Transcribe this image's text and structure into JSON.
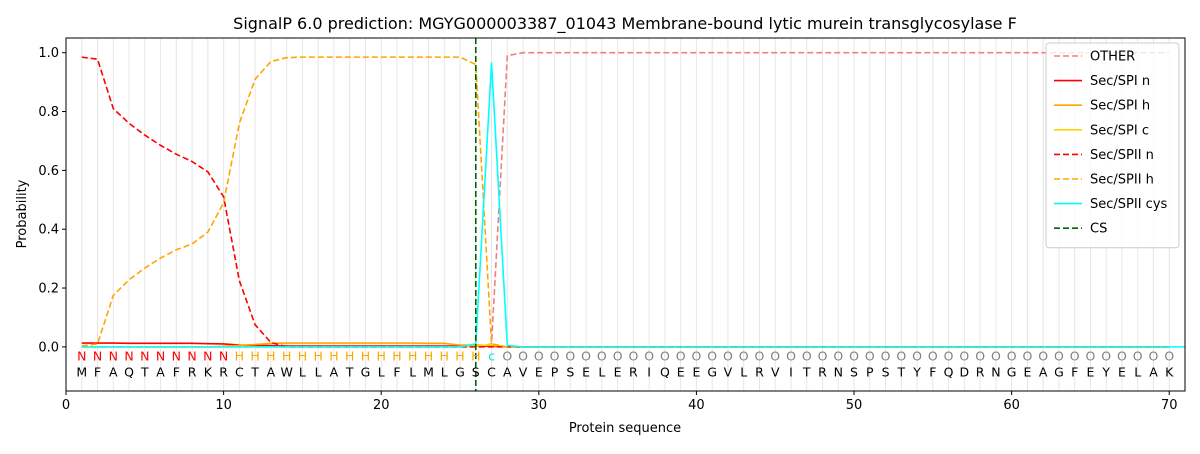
{
  "chart_data": {
    "type": "line",
    "title": "SignalP 6.0 prediction: MGYG000003387_01043 Membrane-bound lytic murein transglycosylase F",
    "xlabel": "Protein sequence",
    "ylabel": "Probability",
    "xlim": [
      0,
      71
    ],
    "ylim": [
      -0.15,
      1.05
    ],
    "xticks": [
      0,
      10,
      20,
      30,
      40,
      50,
      60,
      70
    ],
    "yticks": [
      0.0,
      0.2,
      0.4,
      0.6,
      0.8,
      1.0
    ],
    "ytick_labels": [
      "0.0",
      "0.2",
      "0.4",
      "0.6",
      "0.8",
      "1.0"
    ],
    "grid": "vertical lines at each residue",
    "legend_position": "top-right",
    "sequence": [
      "M",
      "F",
      "A",
      "Q",
      "T",
      "A",
      "F",
      "R",
      "K",
      "R",
      "C",
      "T",
      "A",
      "W",
      "L",
      "L",
      "A",
      "T",
      "G",
      "L",
      "F",
      "L",
      "M",
      "L",
      "G",
      "S",
      "C",
      "A",
      "V",
      "E",
      "P",
      "S",
      "E",
      "L",
      "E",
      "R",
      "I",
      "Q",
      "E",
      "E",
      "G",
      "V",
      "L",
      "R",
      "V",
      "I",
      "T",
      "R",
      "N",
      "S",
      "P",
      "S",
      "T",
      "Y",
      "F",
      "Q",
      "D",
      "R",
      "N",
      "G",
      "E",
      "A",
      "G",
      "F",
      "E",
      "Y",
      "E",
      "L",
      "A",
      "K"
    ],
    "region_labels": [
      "N",
      "N",
      "N",
      "N",
      "N",
      "N",
      "N",
      "N",
      "N",
      "N",
      "H",
      "H",
      "H",
      "H",
      "H",
      "H",
      "H",
      "H",
      "H",
      "H",
      "H",
      "H",
      "H",
      "H",
      "H",
      "H",
      "c",
      "O",
      "O",
      "O",
      "O",
      "O",
      "O",
      "O",
      "O",
      "O",
      "O",
      "O",
      "O",
      "O",
      "O",
      "O",
      "O",
      "O",
      "O",
      "O",
      "O",
      "O",
      "O",
      "O",
      "O",
      "O",
      "O",
      "O",
      "O",
      "O",
      "O",
      "O",
      "O",
      "O",
      "O",
      "O",
      "O",
      "O",
      "O",
      "O",
      "O",
      "O",
      "O",
      "O"
    ],
    "region_colors": {
      "N": "#ff0000",
      "H": "#ffa500",
      "c": "#00e5e5",
      "O": "#808080"
    },
    "cs_position": 26,
    "series": [
      {
        "name": "OTHER",
        "color": "#f08080",
        "dash": "dashed",
        "values": [
          0,
          0,
          0,
          0,
          0,
          0,
          0,
          0,
          0,
          0,
          0,
          0,
          0,
          0,
          0,
          0,
          0,
          0,
          0,
          0,
          0,
          0,
          0,
          0,
          0,
          0,
          0.01,
          0.99,
          1,
          1,
          1,
          1,
          1,
          1,
          1,
          1,
          1,
          1,
          1,
          1,
          1,
          1,
          1,
          1,
          1,
          1,
          1,
          1,
          1,
          1,
          1,
          1,
          1,
          1,
          1,
          1,
          1,
          1,
          1,
          1,
          1,
          1,
          1,
          1,
          1,
          1,
          1,
          1,
          1,
          1
        ]
      },
      {
        "name": "Sec/SPI n",
        "color": "#ff0000",
        "dash": "solid",
        "values": [
          0.013,
          0.013,
          0.013,
          0.012,
          0.012,
          0.012,
          0.012,
          0.012,
          0.011,
          0.01,
          0.006,
          0.005,
          0.004,
          0.003,
          0.003,
          0.003,
          0.003,
          0.003,
          0.003,
          0.003,
          0.003,
          0.003,
          0.003,
          0.003,
          0.003,
          0.003,
          0.002,
          0,
          0,
          0,
          0,
          0,
          0,
          0,
          0,
          0,
          0,
          0,
          0,
          0,
          0,
          0,
          0,
          0,
          0,
          0,
          0,
          0,
          0,
          0,
          0,
          0,
          0,
          0,
          0,
          0,
          0,
          0,
          0,
          0,
          0,
          0,
          0,
          0,
          0,
          0,
          0,
          0,
          0,
          0
        ]
      },
      {
        "name": "Sec/SPI h",
        "color": "#ffa500",
        "dash": "solid",
        "values": [
          0,
          0,
          0,
          0,
          0,
          0,
          0,
          0,
          0,
          0.002,
          0.005,
          0.008,
          0.012,
          0.013,
          0.013,
          0.013,
          0.013,
          0.013,
          0.013,
          0.013,
          0.013,
          0.013,
          0.012,
          0.012,
          0.006,
          0.006,
          0.005,
          0,
          0,
          0,
          0,
          0,
          0,
          0,
          0,
          0,
          0,
          0,
          0,
          0,
          0,
          0,
          0,
          0,
          0,
          0,
          0,
          0,
          0,
          0,
          0,
          0,
          0,
          0,
          0,
          0,
          0,
          0,
          0,
          0,
          0,
          0,
          0,
          0,
          0,
          0,
          0,
          0,
          0,
          0
        ]
      },
      {
        "name": "Sec/SPI c",
        "color": "#ffd700",
        "dash": "solid",
        "values": [
          0,
          0,
          0,
          0,
          0,
          0,
          0,
          0,
          0,
          0,
          0,
          0,
          0,
          0,
          0,
          0,
          0,
          0,
          0,
          0,
          0,
          0,
          0,
          0,
          0,
          0.003,
          0.008,
          0,
          0,
          0,
          0,
          0,
          0,
          0,
          0,
          0,
          0,
          0,
          0,
          0,
          0,
          0,
          0,
          0,
          0,
          0,
          0,
          0,
          0,
          0,
          0,
          0,
          0,
          0,
          0,
          0,
          0,
          0,
          0,
          0,
          0,
          0,
          0,
          0,
          0,
          0,
          0,
          0,
          0,
          0
        ]
      },
      {
        "name": "Sec/SPII n",
        "color": "#ff0000",
        "dash": "dashed",
        "values": [
          0.985,
          0.978,
          0.81,
          0.76,
          0.72,
          0.685,
          0.655,
          0.63,
          0.595,
          0.51,
          0.225,
          0.075,
          0.015,
          0,
          0,
          0,
          0,
          0,
          0,
          0,
          0,
          0,
          0,
          0,
          0,
          0,
          0,
          0,
          0,
          0,
          0,
          0,
          0,
          0,
          0,
          0,
          0,
          0,
          0,
          0,
          0,
          0,
          0,
          0,
          0,
          0,
          0,
          0,
          0,
          0,
          0,
          0,
          0,
          0,
          0,
          0,
          0,
          0,
          0,
          0,
          0,
          0,
          0,
          0,
          0,
          0,
          0,
          0,
          0,
          0
        ]
      },
      {
        "name": "Sec/SPII h",
        "color": "#ffa500",
        "dash": "dashed",
        "values": [
          0.003,
          0.01,
          0.175,
          0.228,
          0.268,
          0.302,
          0.33,
          0.35,
          0.39,
          0.49,
          0.76,
          0.91,
          0.97,
          0.983,
          0.985,
          0.985,
          0.985,
          0.985,
          0.985,
          0.985,
          0.985,
          0.985,
          0.985,
          0.985,
          0.985,
          0.96,
          0.01,
          0,
          0,
          0,
          0,
          0,
          0,
          0,
          0,
          0,
          0,
          0,
          0,
          0,
          0,
          0,
          0,
          0,
          0,
          0,
          0,
          0,
          0,
          0,
          0,
          0,
          0,
          0,
          0,
          0,
          0,
          0,
          0,
          0,
          0,
          0,
          0,
          0,
          0,
          0,
          0,
          0,
          0,
          0
        ]
      },
      {
        "name": "Sec/SPII cys",
        "color": "#00ffff",
        "dash": "solid",
        "values": [
          0,
          0,
          0,
          0,
          0,
          0,
          0,
          0,
          0,
          0,
          0,
          0,
          0,
          0,
          0,
          0,
          0,
          0,
          0,
          0,
          0,
          0,
          0,
          0,
          0,
          0.01,
          0.965,
          0.005,
          0,
          0,
          0,
          0,
          0,
          0,
          0,
          0,
          0,
          0,
          0,
          0,
          0,
          0,
          0,
          0,
          0,
          0,
          0,
          0,
          0,
          0,
          0,
          0,
          0,
          0,
          0,
          0,
          0,
          0,
          0,
          0,
          0,
          0,
          0,
          0,
          0,
          0,
          0,
          0,
          0,
          0,
          0
        ]
      }
    ],
    "cs_legend": {
      "name": "CS",
      "color": "#006400",
      "dash": "dashed"
    }
  }
}
